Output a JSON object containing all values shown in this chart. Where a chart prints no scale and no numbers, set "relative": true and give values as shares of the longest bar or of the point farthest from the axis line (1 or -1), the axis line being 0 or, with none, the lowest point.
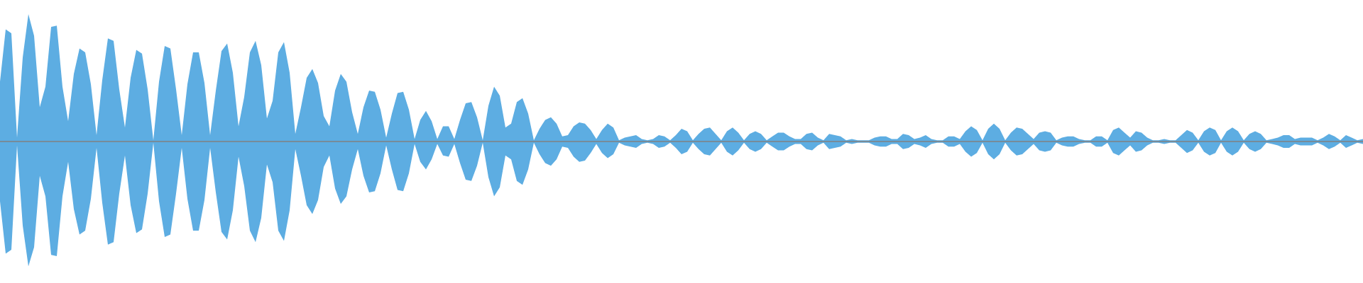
{
  "chart_data": {
    "type": "area",
    "relative": true,
    "categories": [
      null,
      null,
      null,
      null,
      null,
      null,
      null,
      null,
      null,
      null,
      null,
      null,
      null,
      null,
      null,
      null,
      null,
      null,
      null,
      null,
      null,
      null,
      null,
      null,
      null,
      null,
      null,
      null,
      null,
      null,
      null,
      null,
      null,
      null,
      null,
      null,
      null,
      null,
      null,
      null,
      null,
      null,
      null,
      null,
      null,
      null,
      null,
      null,
      null,
      null,
      null,
      null,
      null,
      null,
      null,
      null,
      null,
      null,
      null,
      null,
      null,
      null,
      null,
      null,
      null,
      null,
      null,
      null,
      null,
      null,
      null,
      null,
      null,
      null,
      null,
      null,
      null,
      null,
      null,
      null,
      null,
      null,
      null,
      null,
      null,
      null,
      null,
      null,
      null,
      null,
      null,
      null,
      null,
      null,
      null,
      null,
      null,
      null,
      null,
      null,
      null,
      null,
      null,
      null,
      null,
      null,
      null,
      null,
      null,
      null,
      null,
      null,
      null,
      null,
      null,
      null,
      null,
      null,
      null,
      null,
      null,
      null,
      null,
      null,
      null,
      null,
      null,
      null,
      null,
      null,
      null,
      null,
      null,
      null,
      null,
      null,
      null,
      null,
      null,
      null,
      null,
      null,
      null,
      null,
      null,
      null,
      null,
      null,
      null,
      null,
      null,
      null,
      null,
      null,
      null,
      null,
      null,
      null,
      null,
      null,
      null,
      null,
      null,
      null,
      null,
      null,
      null,
      null,
      null,
      null,
      null,
      null,
      null,
      null,
      null,
      null,
      null,
      null,
      null,
      null,
      null,
      null,
      null,
      null,
      null,
      null,
      null,
      null,
      null,
      null,
      null,
      null,
      null,
      null,
      null,
      null,
      null,
      null,
      null,
      null,
      null,
      null,
      null,
      null,
      null,
      null,
      null,
      null,
      null,
      null,
      null,
      null,
      null,
      null,
      null,
      null,
      null,
      null,
      null,
      null,
      null,
      null,
      null,
      null,
      null,
      null,
      null,
      null,
      null,
      null,
      null,
      null,
      null,
      null,
      null,
      null,
      null,
      null,
      null,
      null,
      null
    ],
    "series": [
      {
        "color": "#5dade2",
        "values": [
          0.47,
          0.88,
          0.85,
          0.03,
          0.66,
          1.0,
          0.83,
          0.27,
          0.43,
          0.9,
          0.91,
          0.43,
          0.16,
          0.53,
          0.73,
          0.7,
          0.45,
          0.05,
          0.48,
          0.81,
          0.79,
          0.41,
          0.11,
          0.5,
          0.72,
          0.69,
          0.41,
          0.01,
          0.47,
          0.75,
          0.73,
          0.41,
          0.05,
          0.45,
          0.7,
          0.7,
          0.46,
          0.05,
          0.4,
          0.71,
          0.77,
          0.54,
          0.12,
          0.35,
          0.7,
          0.79,
          0.6,
          0.18,
          0.32,
          0.7,
          0.78,
          0.54,
          0.06,
          0.27,
          0.5,
          0.57,
          0.46,
          0.2,
          0.12,
          0.4,
          0.53,
          0.47,
          0.23,
          0.06,
          0.27,
          0.4,
          0.39,
          0.25,
          0.03,
          0.22,
          0.38,
          0.39,
          0.25,
          0.02,
          0.17,
          0.24,
          0.16,
          0.02,
          0.12,
          0.12,
          0.02,
          0.17,
          0.3,
          0.31,
          0.19,
          0.01,
          0.28,
          0.43,
          0.36,
          0.11,
          0.14,
          0.31,
          0.34,
          0.22,
          0.01,
          0.1,
          0.17,
          0.19,
          0.14,
          0.04,
          0.05,
          0.12,
          0.15,
          0.14,
          0.09,
          0.02,
          0.09,
          0.14,
          0.11,
          0.01,
          0.03,
          0.04,
          0.05,
          0.02,
          0.01,
          0.02,
          0.05,
          0.04,
          0.01,
          0.05,
          0.1,
          0.08,
          0.01,
          0.06,
          0.1,
          0.11,
          0.06,
          0.01,
          0.08,
          0.11,
          0.07,
          0.01,
          0.06,
          0.08,
          0.06,
          0.01,
          0.04,
          0.07,
          0.07,
          0.04,
          0.02,
          0.02,
          0.06,
          0.07,
          0.03,
          0.01,
          0.06,
          0.05,
          0.04,
          0.01,
          0.02,
          0.01,
          0.01,
          0.01,
          0.03,
          0.04,
          0.04,
          0.02,
          0.02,
          0.06,
          0.05,
          0.02,
          0.03,
          0.05,
          0.02,
          0.01,
          0.01,
          0.04,
          0.04,
          0.02,
          0.08,
          0.12,
          0.09,
          0.01,
          0.1,
          0.14,
          0.1,
          0.01,
          0.07,
          0.11,
          0.1,
          0.06,
          0.02,
          0.07,
          0.08,
          0.07,
          0.01,
          0.03,
          0.04,
          0.04,
          0.02,
          0.01,
          0.01,
          0.04,
          0.04,
          0.01,
          0.09,
          0.11,
          0.07,
          0.03,
          0.08,
          0.07,
          0.03,
          0.01,
          0.01,
          0.02,
          0.01,
          0.01,
          0.05,
          0.09,
          0.07,
          0.01,
          0.08,
          0.11,
          0.09,
          0.01,
          0.08,
          0.11,
          0.08,
          0.01,
          0.06,
          0.08,
          0.06,
          0.01,
          0.02,
          0.03,
          0.05,
          0.05,
          0.02,
          0.03,
          0.03,
          0.03,
          0.01,
          0.03,
          0.06,
          0.04,
          0.01,
          0.05,
          0.03,
          0.01,
          0.02
        ]
      },
      {
        "color": "#5dade2",
        "values": [
          -0.47,
          -0.88,
          -0.85,
          -0.03,
          -0.66,
          -0.98,
          -0.83,
          -0.27,
          -0.43,
          -0.89,
          -0.9,
          -0.43,
          -0.16,
          -0.53,
          -0.73,
          -0.7,
          -0.45,
          -0.05,
          -0.48,
          -0.81,
          -0.79,
          -0.41,
          -0.11,
          -0.5,
          -0.72,
          -0.69,
          -0.41,
          -0.01,
          -0.47,
          -0.75,
          -0.73,
          -0.41,
          -0.05,
          -0.45,
          -0.7,
          -0.7,
          -0.46,
          -0.05,
          -0.4,
          -0.71,
          -0.77,
          -0.54,
          -0.12,
          -0.35,
          -0.7,
          -0.79,
          -0.6,
          -0.18,
          -0.32,
          -0.7,
          -0.78,
          -0.54,
          -0.06,
          -0.27,
          -0.5,
          -0.57,
          -0.46,
          -0.2,
          -0.11,
          -0.37,
          -0.49,
          -0.43,
          -0.22,
          -0.06,
          -0.27,
          -0.4,
          -0.39,
          -0.25,
          -0.03,
          -0.22,
          -0.38,
          -0.39,
          -0.25,
          -0.02,
          -0.16,
          -0.22,
          -0.14,
          -0.02,
          -0.11,
          -0.12,
          -0.02,
          -0.17,
          -0.3,
          -0.31,
          -0.19,
          -0.01,
          -0.28,
          -0.43,
          -0.36,
          -0.11,
          -0.14,
          -0.31,
          -0.34,
          -0.22,
          -0.01,
          -0.1,
          -0.17,
          -0.19,
          -0.14,
          -0.04,
          -0.05,
          -0.12,
          -0.16,
          -0.15,
          -0.09,
          -0.02,
          -0.09,
          -0.13,
          -0.1,
          -0.01,
          -0.03,
          -0.04,
          -0.05,
          -0.02,
          -0.01,
          -0.02,
          -0.05,
          -0.04,
          -0.01,
          -0.05,
          -0.1,
          -0.08,
          -0.01,
          -0.06,
          -0.1,
          -0.11,
          -0.06,
          -0.01,
          -0.08,
          -0.11,
          -0.07,
          -0.01,
          -0.06,
          -0.08,
          -0.06,
          -0.01,
          -0.04,
          -0.07,
          -0.07,
          -0.04,
          -0.02,
          -0.02,
          -0.06,
          -0.07,
          -0.03,
          -0.01,
          -0.06,
          -0.05,
          -0.04,
          -0.01,
          -0.02,
          -0.01,
          -0.01,
          -0.01,
          -0.03,
          -0.04,
          -0.04,
          -0.02,
          -0.02,
          -0.06,
          -0.05,
          -0.02,
          -0.03,
          -0.05,
          -0.02,
          -0.01,
          -0.01,
          -0.04,
          -0.04,
          -0.02,
          -0.08,
          -0.12,
          -0.09,
          -0.01,
          -0.1,
          -0.14,
          -0.1,
          -0.01,
          -0.07,
          -0.11,
          -0.1,
          -0.06,
          -0.02,
          -0.07,
          -0.08,
          -0.07,
          -0.01,
          -0.03,
          -0.04,
          -0.04,
          -0.02,
          -0.01,
          -0.01,
          -0.04,
          -0.04,
          -0.01,
          -0.09,
          -0.11,
          -0.07,
          -0.03,
          -0.08,
          -0.07,
          -0.03,
          -0.01,
          -0.01,
          -0.02,
          -0.01,
          -0.01,
          -0.05,
          -0.09,
          -0.07,
          -0.01,
          -0.08,
          -0.11,
          -0.09,
          -0.01,
          -0.08,
          -0.11,
          -0.08,
          -0.01,
          -0.06,
          -0.08,
          -0.06,
          -0.01,
          -0.02,
          -0.03,
          -0.05,
          -0.05,
          -0.02,
          -0.03,
          -0.03,
          -0.03,
          -0.01,
          -0.03,
          -0.06,
          -0.04,
          -0.01,
          -0.05,
          -0.03,
          -0.01,
          -0.02
        ]
      }
    ]
  }
}
